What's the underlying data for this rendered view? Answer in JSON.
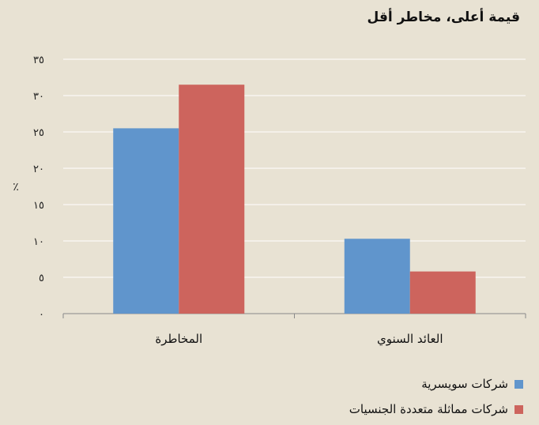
{
  "chart_data": {
    "type": "bar",
    "title": "قيمة أعلى، مخاطر أقل",
    "ylabel": "٪",
    "ylim": [
      0,
      35
    ],
    "yticks": [
      0,
      5,
      10,
      15,
      20,
      25,
      30,
      35
    ],
    "ytick_labels": [
      "٠",
      "٥",
      "١٠",
      "١٥",
      "٢٠",
      "٢٥",
      "٣٠",
      "٣٥"
    ],
    "categories": [
      "العائد السنوي",
      "المخاطرة"
    ],
    "series": [
      {
        "name": "شركات سويسرية",
        "color": "#6095cc",
        "values": [
          10.3,
          25.5
        ]
      },
      {
        "name": "شركات مماثلة متعددة الجنسيات",
        "color": "#cd645d",
        "values": [
          5.8,
          31.5
        ]
      }
    ],
    "grid": true,
    "legend_position": "bottom-right"
  }
}
